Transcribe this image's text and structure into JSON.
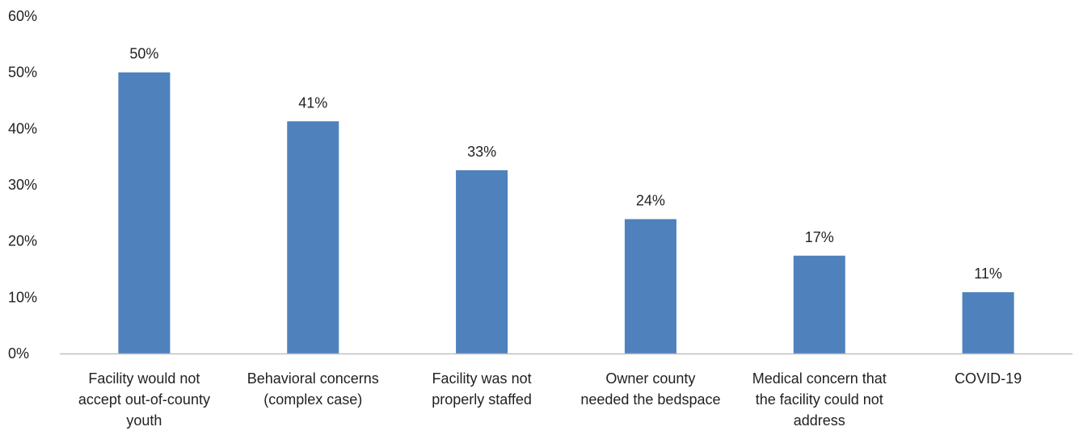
{
  "chart_data": {
    "type": "bar",
    "categories": [
      [
        "Facility would not",
        "accept out-of-county",
        "youth"
      ],
      [
        "Behavioral concerns",
        "(complex case)"
      ],
      [
        "Facility was not",
        "properly staffed"
      ],
      [
        "Owner county",
        "needed the bedspace"
      ],
      [
        "Medical concern that",
        "the facility could not",
        "address"
      ],
      [
        "COVID-19"
      ]
    ],
    "values": [
      50,
      41.3,
      32.6,
      23.9,
      17.4,
      10.9
    ],
    "data_labels": [
      "50%",
      "41%",
      "33%",
      "24%",
      "17%",
      "11%"
    ],
    "ylim": [
      0,
      60
    ],
    "yticks": [
      "0%",
      "10%",
      "20%",
      "30%",
      "40%",
      "50%",
      "60%"
    ],
    "title": "",
    "xlabel": "",
    "ylabel": "",
    "grid": false,
    "legend": "none",
    "colors": {
      "bar": "#4f81bd",
      "axis": "#bfbfbf",
      "text": "#222222"
    }
  }
}
